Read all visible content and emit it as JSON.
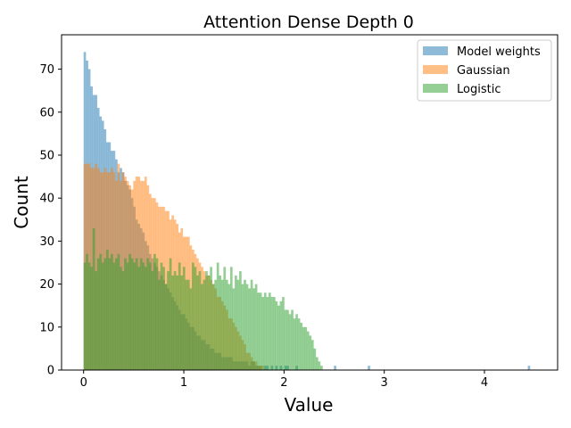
{
  "chart_data": {
    "type": "bar",
    "title": "Attention Dense Depth 0",
    "xlabel": "Value",
    "ylabel": "Count",
    "xlim": [
      -0.22,
      4.73
    ],
    "ylim": [
      0,
      78
    ],
    "xticks": [
      0,
      1,
      2,
      3,
      4
    ],
    "yticks": [
      0,
      10,
      20,
      30,
      40,
      50,
      60,
      70
    ],
    "grid": false,
    "legend_position": "top-right",
    "bin_start": 0,
    "bin_width": 0.0225,
    "series": [
      {
        "name": "Model weights",
        "color": "#1f77b4",
        "counts": [
          74,
          72,
          70,
          66,
          64,
          64,
          61,
          59,
          58,
          56,
          53,
          53,
          51,
          51,
          49,
          46,
          47,
          46,
          44,
          43,
          42,
          40,
          38,
          35,
          34,
          33,
          32,
          30,
          29,
          27,
          26,
          25,
          24,
          23,
          22,
          21,
          20,
          19,
          18,
          17,
          16,
          15,
          14,
          13,
          13,
          12,
          11,
          10,
          10,
          9,
          8,
          8,
          7,
          7,
          6,
          6,
          5,
          5,
          4,
          4,
          4,
          3,
          3,
          3,
          3,
          3,
          2,
          2,
          2,
          2,
          2,
          2,
          2,
          1,
          2,
          2,
          1,
          1,
          1,
          0,
          1,
          1,
          0,
          1,
          0,
          1,
          0,
          1,
          0,
          1,
          1,
          0,
          0,
          0,
          1,
          0,
          0,
          0,
          0,
          0,
          0,
          0,
          0,
          0,
          0,
          0,
          0,
          0,
          0,
          0,
          0,
          1,
          0,
          0,
          0,
          0,
          0,
          0,
          0,
          0,
          0,
          0,
          0,
          0,
          0,
          0,
          1,
          0,
          0,
          0,
          0,
          0,
          0,
          0,
          0,
          0,
          0,
          0,
          0,
          0,
          0,
          0,
          0,
          0,
          0,
          0,
          0,
          0,
          0,
          0,
          0,
          0,
          0,
          0,
          0,
          0,
          0,
          0,
          0,
          0,
          0,
          0,
          0,
          0,
          0,
          0,
          0,
          0,
          0,
          0,
          0,
          0,
          0,
          0,
          0,
          0,
          0,
          0,
          0,
          0,
          0,
          0,
          0,
          0,
          0,
          0,
          0,
          0,
          0,
          0,
          0,
          0,
          0,
          0,
          0,
          0,
          0,
          1
        ],
        "label_bars_nonzero_note": ""
      },
      {
        "name": "Gaussian",
        "color": "#ff7f0e",
        "counts": [
          48,
          48,
          48,
          47,
          47,
          48,
          47,
          46,
          46,
          47,
          46,
          46,
          47,
          46,
          44,
          48,
          44,
          46,
          45,
          44,
          43,
          42,
          44,
          45,
          45,
          44,
          44,
          45,
          43,
          41,
          40,
          40,
          39,
          38,
          38,
          38,
          37,
          37,
          35,
          36,
          35,
          34,
          32,
          33,
          31,
          31,
          31,
          29,
          28,
          27,
          26,
          25,
          24,
          23,
          22,
          22,
          21,
          20,
          19,
          17,
          17,
          16,
          15,
          14,
          12,
          12,
          11,
          10,
          9,
          8,
          7,
          6,
          4,
          4,
          3,
          2,
          2,
          1,
          1,
          1,
          0,
          0,
          0,
          0,
          0,
          0,
          0,
          0,
          0,
          0,
          0,
          0,
          0,
          0,
          0,
          0,
          0,
          0,
          0,
          0
        ]
      },
      {
        "name": "Logistic",
        "color": "#2ca02c",
        "counts": [
          25,
          27,
          25,
          24,
          33,
          23,
          26,
          27,
          25,
          26,
          28,
          26,
          27,
          25,
          26,
          27,
          24,
          23,
          26,
          25,
          27,
          26,
          25,
          26,
          24,
          26,
          25,
          24,
          26,
          25,
          23,
          27,
          26,
          21,
          25,
          24,
          20,
          23,
          26,
          22,
          23,
          22,
          25,
          22,
          24,
          21,
          21,
          19,
          25,
          24,
          22,
          23,
          20,
          21,
          23,
          22,
          24,
          20,
          21,
          25,
          22,
          21,
          24,
          21,
          20,
          24,
          19,
          22,
          21,
          23,
          20,
          21,
          20,
          19,
          21,
          19,
          20,
          18,
          18,
          17,
          18,
          17,
          18,
          17,
          17,
          16,
          15,
          16,
          17,
          14,
          14,
          13,
          14,
          12,
          13,
          12,
          11,
          10,
          10,
          9,
          8,
          7,
          5,
          3,
          2,
          1
        ]
      }
    ]
  }
}
